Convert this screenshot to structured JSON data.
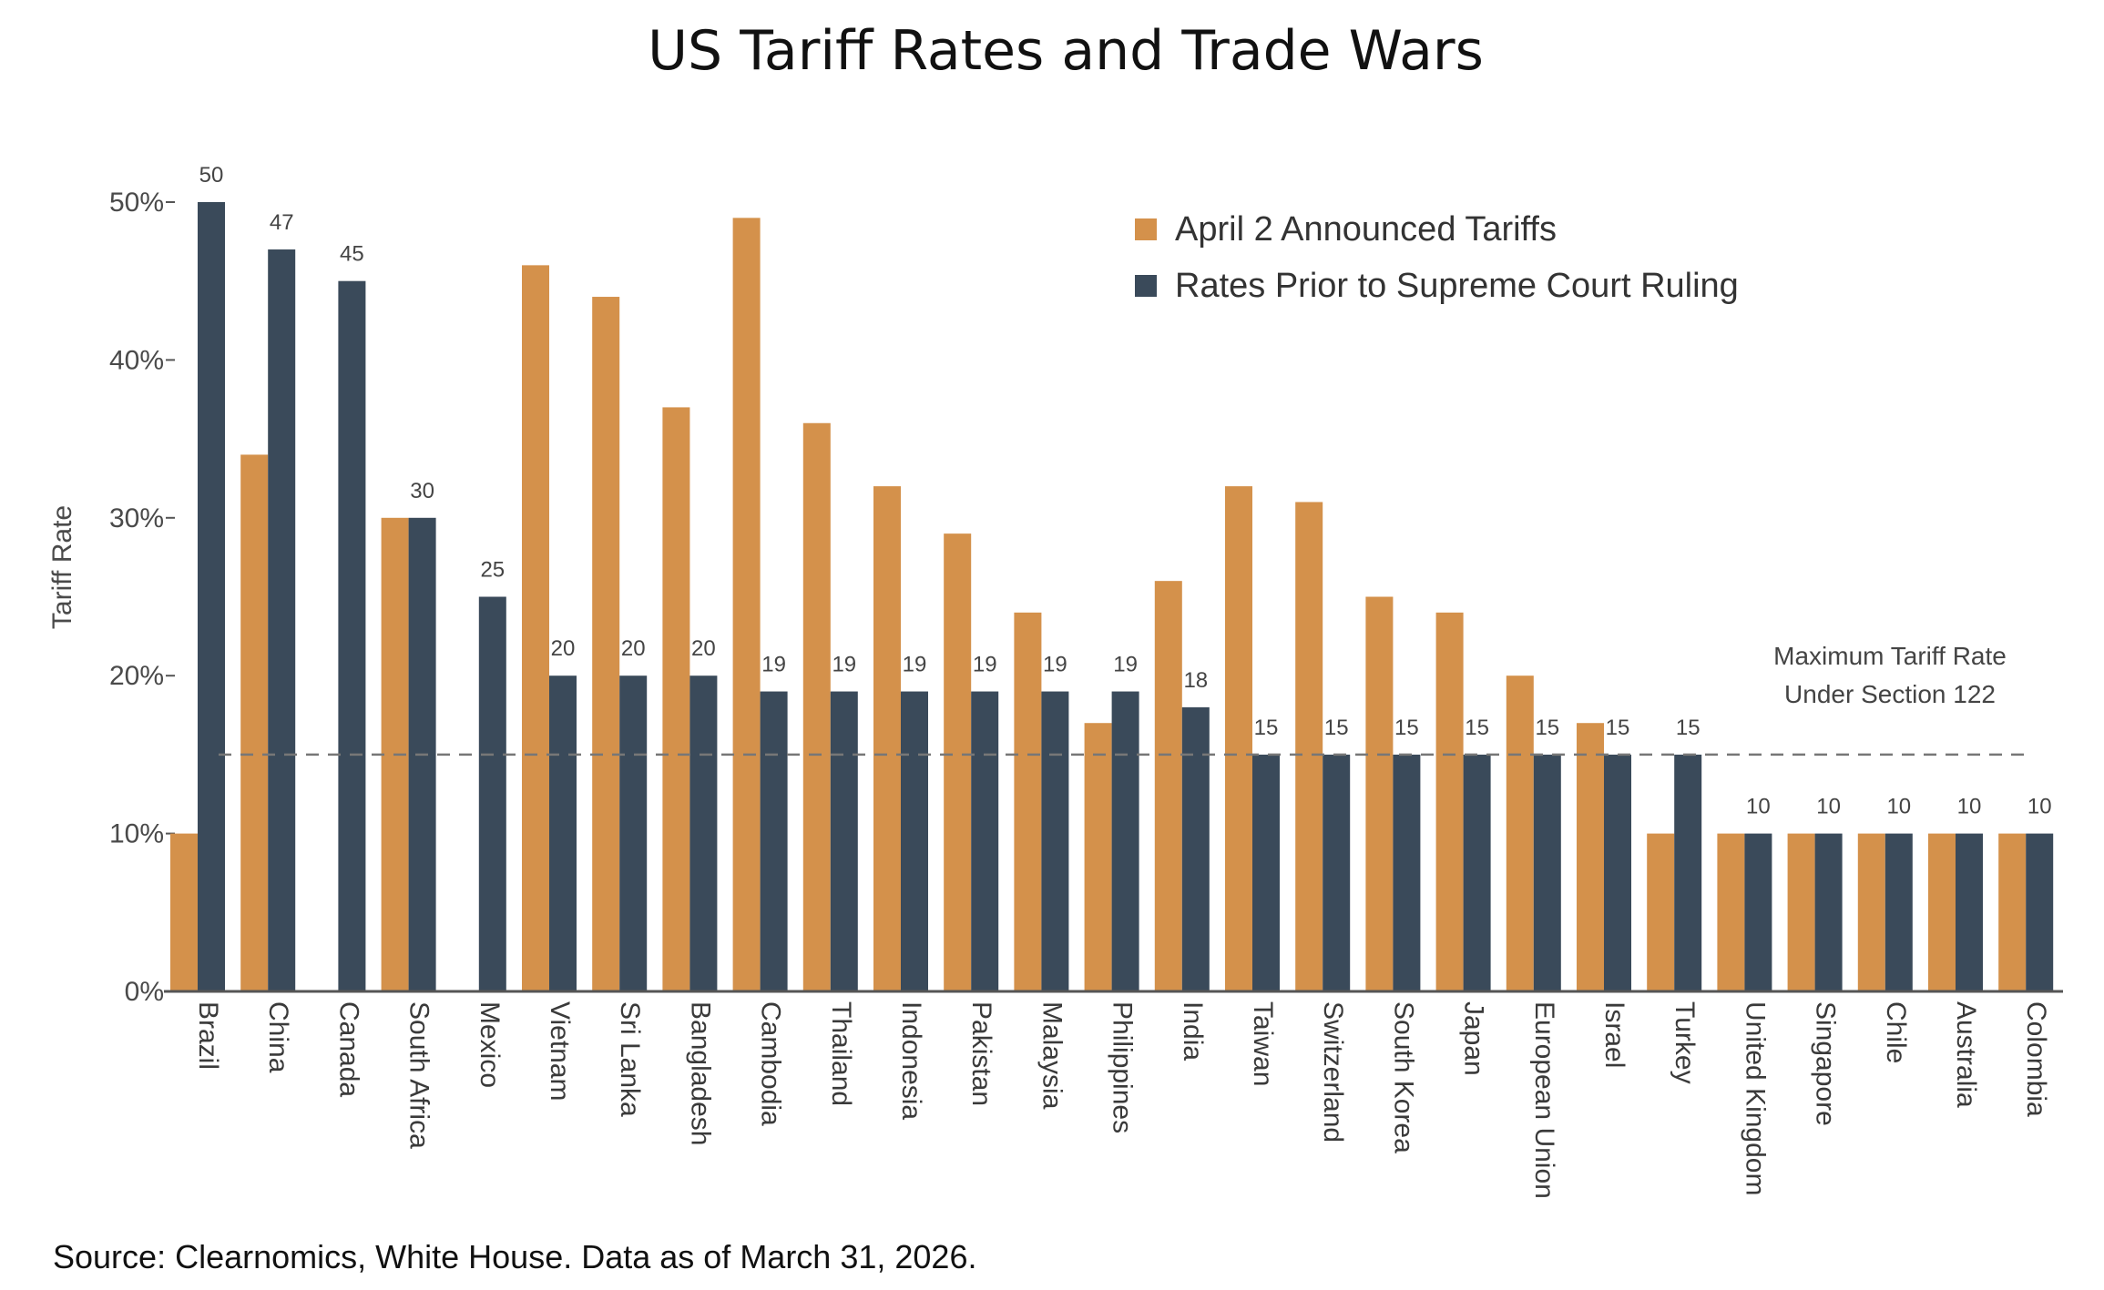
{
  "colors": {
    "announced": "#D4914B",
    "prior": "#3A4A5A",
    "axis": "#555555",
    "dash": "#777777"
  },
  "chart_data": {
    "type": "bar",
    "title": "US Tariff Rates and Trade Wars",
    "ylabel": "Tariff Rate",
    "xlabel": "",
    "ylim": [
      0,
      50
    ],
    "yticks": [
      "0%",
      "10%",
      "20%",
      "30%",
      "40%",
      "50%"
    ],
    "categories": [
      "Brazil",
      "China",
      "Canada",
      "South Africa",
      "Mexico",
      "Vietnam",
      "Sri Lanka",
      "Bangladesh",
      "Cambodia",
      "Thailand",
      "Indonesia",
      "Pakistan",
      "Malaysia",
      "Philippines",
      "India",
      "Taiwan",
      "Switzerland",
      "South Korea",
      "Japan",
      "European Union",
      "Israel",
      "Turkey",
      "United Kingdom",
      "Singapore",
      "Chile",
      "Australia",
      "Colombia"
    ],
    "series": [
      {
        "name": "April 2 Announced Tariffs",
        "values": [
          10,
          34,
          0,
          30,
          0,
          46,
          44,
          37,
          49,
          36,
          32,
          29,
          24,
          17,
          26,
          32,
          31,
          25,
          24,
          20,
          17,
          10,
          10,
          10,
          10,
          10,
          10
        ]
      },
      {
        "name": "Rates Prior to Supreme Court Ruling",
        "values": [
          50,
          47,
          45,
          30,
          25,
          20,
          20,
          20,
          19,
          19,
          19,
          19,
          19,
          19,
          18,
          15,
          15,
          15,
          15,
          15,
          15,
          15,
          10,
          10,
          10,
          10,
          10
        ]
      }
    ],
    "data_labels": [
      "50",
      "47",
      "45",
      "30",
      "25",
      "20",
      "20",
      "20",
      "19",
      "19",
      "19",
      "19",
      "19",
      "19",
      "18",
      "15",
      "15",
      "15",
      "15",
      "15",
      "15",
      "15",
      "10",
      "10",
      "10",
      "10",
      "10"
    ],
    "reference_line": {
      "value": 15,
      "label_line1": "Maximum Tariff Rate",
      "label_line2": "Under Section 122"
    },
    "legend_position": "top-right",
    "source": "Source: Clearnomics, White House. Data as of March 31, 2026."
  }
}
